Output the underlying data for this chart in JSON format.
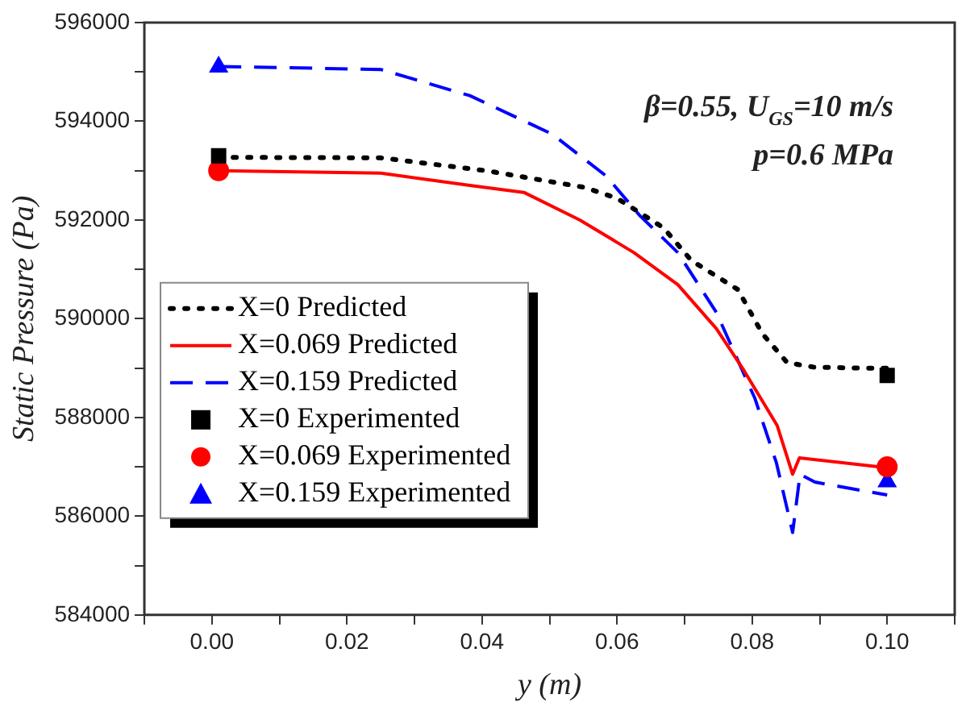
{
  "chart_data": {
    "type": "line",
    "xlabel": "y (m)",
    "ylabel": "Static Pressure (Pa)",
    "annotations": [
      "β=0.55, U$_{GS}$=10 m/s",
      "p=0.6 MPa"
    ],
    "xlim": [
      -0.01,
      0.11
    ],
    "xticks": [
      {
        "value": -0.01,
        "label": null
      },
      {
        "value": 0,
        "label": "0.00"
      },
      {
        "value": 0.01,
        "label": null
      },
      {
        "value": 0.02,
        "label": "0.02"
      },
      {
        "value": 0.03,
        "label": null
      },
      {
        "value": 0.04,
        "label": "0.04"
      },
      {
        "value": 0.05,
        "label": null
      },
      {
        "value": 0.06,
        "label": "0.06"
      },
      {
        "value": 0.07,
        "label": null
      },
      {
        "value": 0.08,
        "label": "0.08"
      },
      {
        "value": 0.09,
        "label": null
      },
      {
        "value": 0.1,
        "label": "0.10"
      },
      {
        "value": 0.11,
        "label": null
      }
    ],
    "ylim": [
      584000,
      596000
    ],
    "yticks": [
      584000,
      {
        "value": 585000,
        "label": null
      },
      586000,
      {
        "value": 587000,
        "label": null
      },
      588000,
      {
        "value": 589000,
        "label": null
      },
      590000,
      {
        "value": 591000,
        "label": null
      },
      592000,
      {
        "value": 593000,
        "label": null
      },
      594000,
      {
        "value": 595000,
        "label": null
      },
      596000
    ],
    "grid": false,
    "legend": "bottom left",
    "series": [
      {
        "name": "X=0 Predicted",
        "type": "line",
        "color": "#000000",
        "line_style": "dotted",
        "marker": "none",
        "x": [
          0.001,
          0.025,
          0.0406,
          0.0552,
          0.06,
          0.0669,
          0.071,
          0.0779,
          0.0815,
          0.0852,
          0.0891,
          0.0964,
          0.1
        ],
        "values": [
          593270,
          593260,
          593000,
          592660,
          592440,
          591840,
          591180,
          590590,
          589700,
          589110,
          589020,
          589000,
          589000
        ]
      },
      {
        "name": "X=0.069 Predicted",
        "type": "line",
        "color": "#ff0000",
        "line_style": "solid",
        "marker": "none",
        "x": [
          0.001,
          0.025,
          0.0382,
          0.0462,
          0.0545,
          0.0625,
          0.069,
          0.0747,
          0.0788,
          0.0837,
          0.086,
          0.087,
          0.1
        ],
        "values": [
          593000,
          592950,
          592700,
          592560,
          592000,
          591340,
          590690,
          589800,
          588950,
          587840,
          586850,
          587180,
          586980
        ]
      },
      {
        "name": "X=0.159 Predicted",
        "type": "line",
        "color": "#0000ff",
        "line_style": "dashed",
        "marker": "none",
        "x": [
          0.001,
          0.025,
          0.0382,
          0.0504,
          0.0584,
          0.0633,
          0.069,
          0.0747,
          0.0804,
          0.0836,
          0.086,
          0.0871,
          0.0893,
          0.1
        ],
        "values": [
          595110,
          595050,
          594520,
          593740,
          592890,
          592100,
          591340,
          590130,
          588390,
          587080,
          585670,
          586850,
          586690,
          586430
        ]
      },
      {
        "name": "X=0 Experimented",
        "type": "scatter",
        "color": "#000000",
        "marker": "square",
        "x": [
          0.001,
          0.1
        ],
        "values": [
          593300,
          588850
        ]
      },
      {
        "name": "X=0.069 Experimented",
        "type": "scatter",
        "color": "#ff0000",
        "marker": "circle",
        "x": [
          0.001,
          0.1
        ],
        "values": [
          593000,
          587000
        ]
      },
      {
        "name": "X=0.159 Experimented",
        "type": "scatter",
        "color": "#0000ff",
        "marker": "triangle",
        "x": [
          0.001,
          0.1
        ],
        "values": [
          595100,
          586700
        ]
      }
    ]
  }
}
